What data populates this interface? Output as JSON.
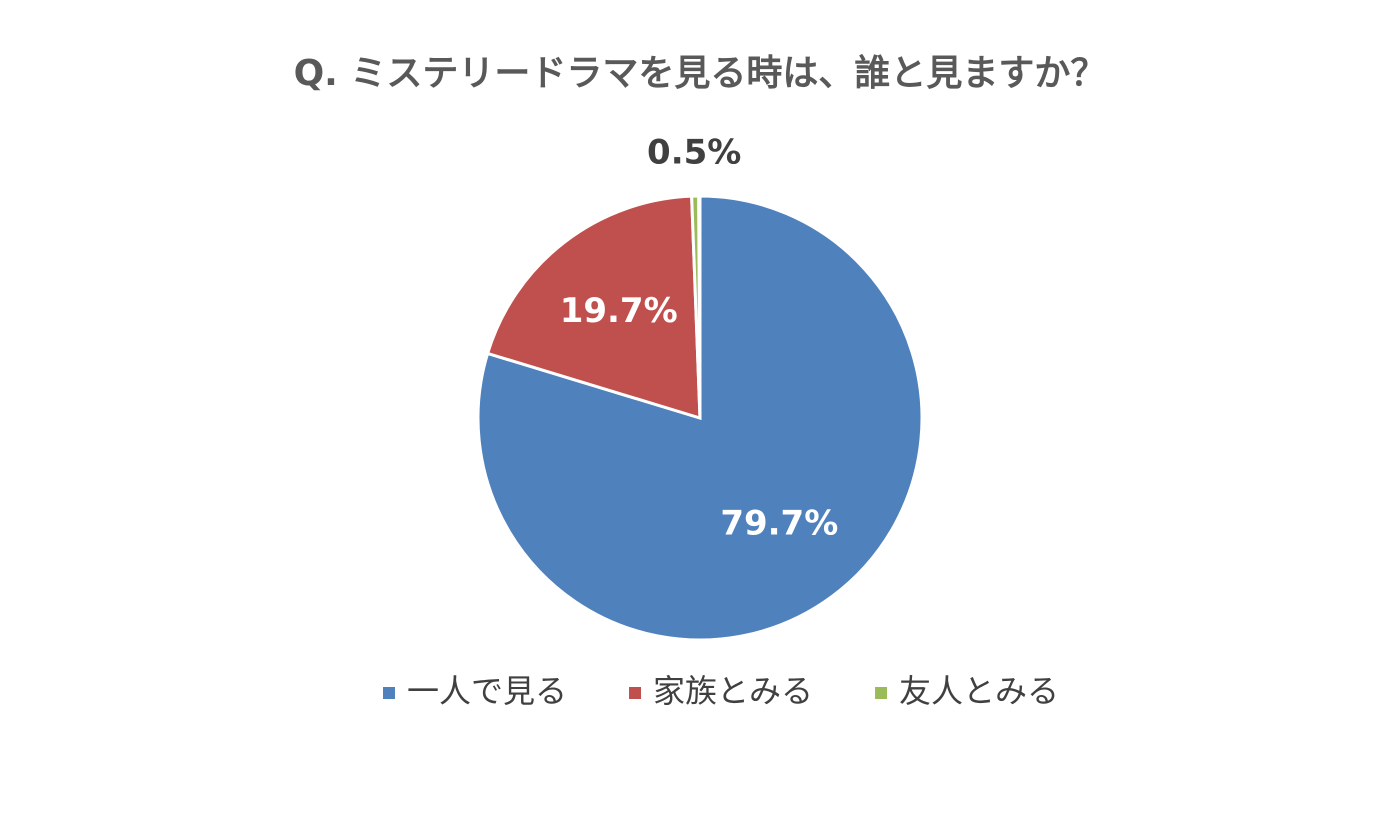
{
  "chart_data": {
    "type": "pie",
    "title": "Q. ミステリードラマを見る時は、誰と見ますか？",
    "categories": [
      "一人で見る",
      "家族とみる",
      "友人とみる"
    ],
    "values": [
      79.7,
      19.7,
      0.5
    ],
    "value_labels": [
      "79.7%",
      "19.7%",
      "0.5%"
    ],
    "colors": [
      "#4f81bd",
      "#c0504d",
      "#9bbb59"
    ],
    "legend": "bottom"
  }
}
